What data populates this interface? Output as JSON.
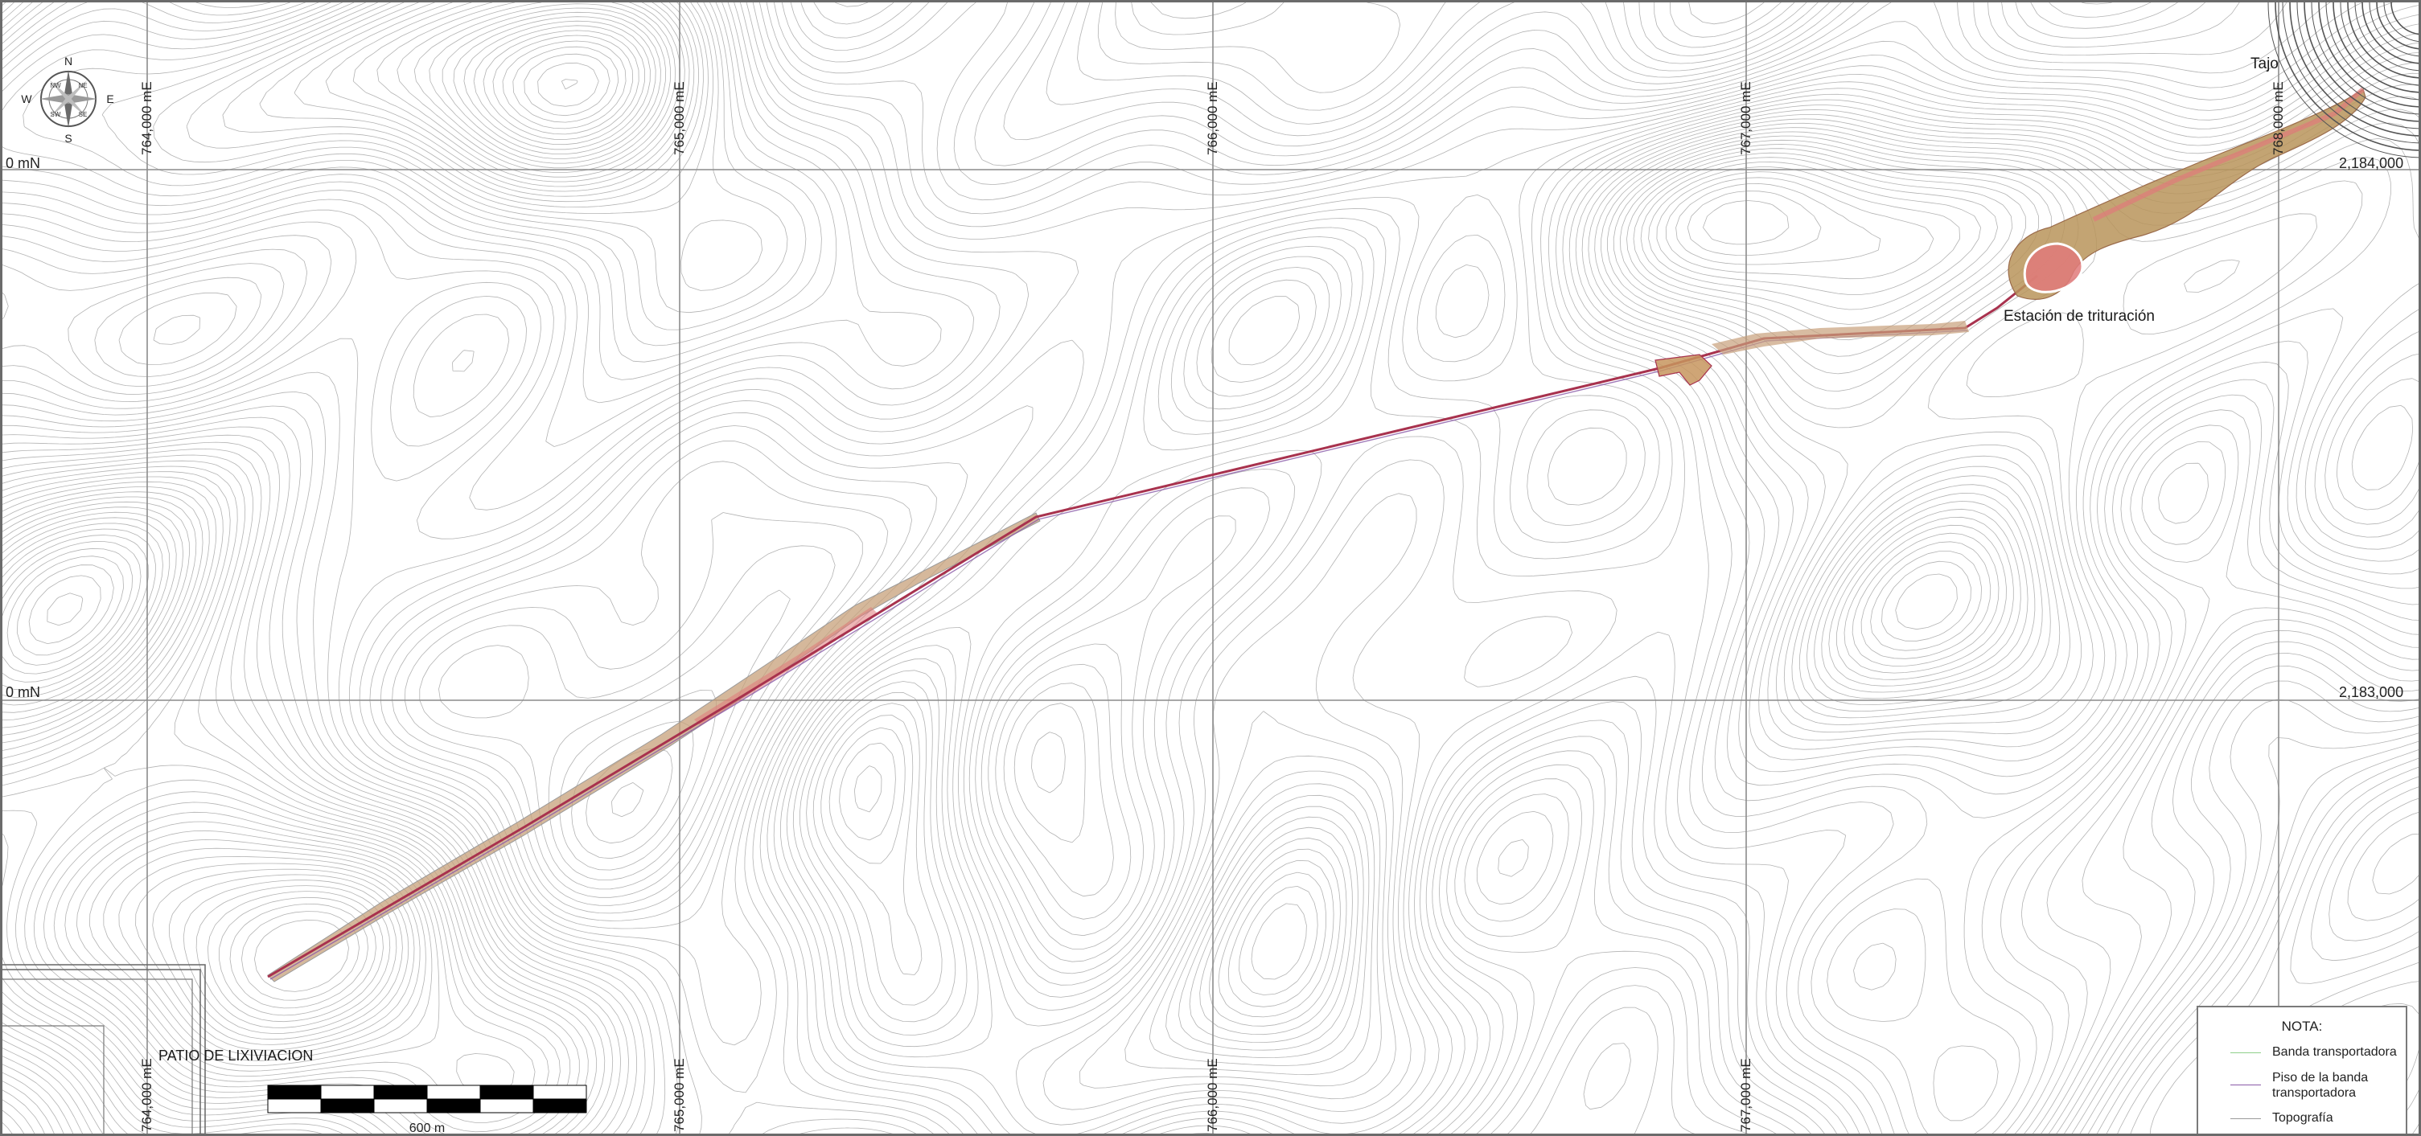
{
  "map": {
    "easting_labels": [
      "764,000 mE",
      "765,000 mE",
      "766,000 mE",
      "767,000 mE",
      "768,000 mE"
    ],
    "northing_labels": {
      "left": [
        "0 mN",
        "0 mN"
      ],
      "right": [
        "2,184,000",
        "2,183,000"
      ]
    },
    "annotations": {
      "pit": "Tajo",
      "crusher": "Estación de trituración",
      "leach_pad": "PATIO DE LIXIVIACION"
    },
    "colors": {
      "contour": "#9a9a9a",
      "grid": "#8c8c8c",
      "conveyor": "#a8324e",
      "platform_fill": "#c79a6a",
      "platform_pink": "#e07a7a",
      "banda_transportadora": "#8fd08a",
      "piso_banda": "#8a5aa8",
      "topografia": "#9a9a9a"
    }
  },
  "compass": {
    "n": "N",
    "s": "S",
    "e": "E",
    "w": "W",
    "ne": "NE",
    "nw": "NW",
    "se": "SE",
    "sw": "SW"
  },
  "scale_bar": {
    "label": "600 m",
    "segments": 6
  },
  "legend": {
    "title": "NOTA:",
    "items": [
      {
        "label": "Banda transportadora",
        "color": "#8fd08a"
      },
      {
        "label": "Piso de la banda transportadora",
        "color": "#8a5aa8"
      },
      {
        "label": "Topografía",
        "color": "#9a9a9a"
      }
    ]
  }
}
